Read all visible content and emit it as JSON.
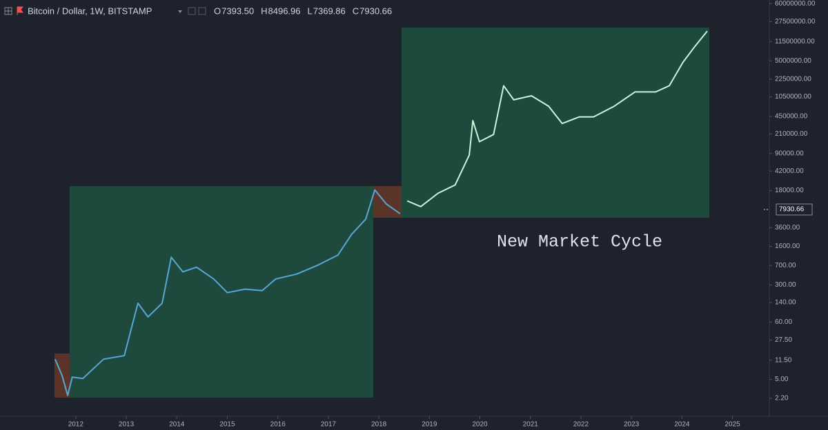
{
  "chart_data": {
    "type": "line",
    "header": {
      "symbol": "Bitcoin / Dollar, 1W, BITSTAMP",
      "ohlc": [
        {
          "key": "O",
          "value": "7393.50"
        },
        {
          "key": "H",
          "value": "8496.96"
        },
        {
          "key": "L",
          "value": "7369.86"
        },
        {
          "key": "C",
          "value": "7930.66"
        }
      ]
    },
    "annotation": "New Market Cycle",
    "last_price": 7930.66,
    "ylog": true,
    "xlim": [
      2010.5,
      2025.73
    ],
    "ylim": [
      1.14,
      70000000
    ],
    "xticks": [
      2012,
      2013,
      2014,
      2015,
      2016,
      2017,
      2018,
      2019,
      2020,
      2021,
      2022,
      2023,
      2024,
      2025
    ],
    "yticks": [
      {
        "value": 60000000,
        "label": "60000000.00"
      },
      {
        "value": 27500000,
        "label": "27500000.00"
      },
      {
        "value": 11500000,
        "label": "11500000.00"
      },
      {
        "value": 5000000,
        "label": "5000000.00"
      },
      {
        "value": 2250000,
        "label": "2250000.00"
      },
      {
        "value": 1050000,
        "label": "1050000.00"
      },
      {
        "value": 450000,
        "label": "450000.00"
      },
      {
        "value": 210000,
        "label": "210000.00"
      },
      {
        "value": 90000,
        "label": "90000.00"
      },
      {
        "value": 42000,
        "label": "42000.00"
      },
      {
        "value": 18000,
        "label": "18000.00"
      },
      {
        "value": 3600,
        "label": "3600.00"
      },
      {
        "value": 1600,
        "label": "1600.00"
      },
      {
        "value": 700,
        "label": "700.00"
      },
      {
        "value": 300,
        "label": "300.00"
      },
      {
        "value": 140,
        "label": "140.00"
      },
      {
        "value": 60,
        "label": "60.00"
      },
      {
        "value": 27.5,
        "label": "27.50"
      },
      {
        "value": 11.5,
        "label": "11.50"
      },
      {
        "value": 5,
        "label": "5.00"
      },
      {
        "value": 2.2,
        "label": "2.20"
      }
    ],
    "series": [
      {
        "color": "#5aa6d6",
        "x": [
          2011.59,
          2011.73,
          2011.84,
          2011.93,
          2012.14,
          2012.55,
          2012.96,
          2013.23,
          2013.43,
          2013.71,
          2013.89,
          2014.12,
          2014.39,
          2014.73,
          2015.0,
          2015.35,
          2015.69,
          2015.96,
          2016.37,
          2016.78,
          2017.19,
          2017.46,
          2017.74,
          2017.92,
          2018.15,
          2018.42
        ],
        "values": [
          12,
          5.9,
          2.5,
          5.5,
          5.2,
          12,
          14,
          136,
          75,
          136,
          1000,
          530,
          650,
          390,
          215,
          250,
          235,
          390,
          480,
          700,
          1100,
          2690,
          5200,
          18500,
          10000,
          6600
        ]
      },
      {
        "color": "#c8f7dc",
        "x": [
          2018.56,
          2018.83,
          2019.17,
          2019.51,
          2019.79,
          2019.86,
          2019.99,
          2020.27,
          2020.47,
          2020.67,
          2021.02,
          2021.36,
          2021.63,
          2021.97,
          2022.25,
          2022.66,
          2023.07,
          2023.48,
          2023.75,
          2024.02,
          2024.23,
          2024.5
        ],
        "values": [
          11500,
          9000,
          16000,
          23000,
          84000,
          375000,
          150000,
          205000,
          1700000,
          920000,
          1100000,
          700000,
          330000,
          440000,
          440000,
          700000,
          1300000,
          1300000,
          1700000,
          4700000,
          8700000,
          18200000
        ]
      }
    ]
  }
}
